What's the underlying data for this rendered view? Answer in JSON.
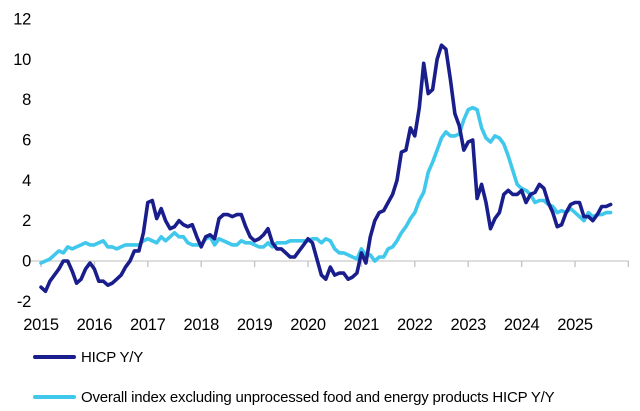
{
  "chart_data": {
    "type": "line",
    "frequency": "monthly",
    "x_range": [
      "2015-01",
      "2025-09"
    ],
    "x_tick_labels": [
      "2015",
      "2016",
      "2017",
      "2018",
      "2019",
      "2020",
      "2021",
      "2022",
      "2023",
      "2024",
      "2025"
    ],
    "y_ticks": [
      12,
      10,
      8,
      6,
      4,
      2,
      0,
      -2
    ],
    "ylim": [
      -2,
      12
    ],
    "grid": "zero-line-only",
    "legend_position": "bottom-left",
    "series": [
      {
        "name": "HICP Y/Y",
        "color": "#1A1E8C",
        "values": [
          -1.3,
          -1.5,
          -1.0,
          -0.7,
          -0.4,
          0,
          0,
          -0.5,
          -1.1,
          -0.9,
          -0.4,
          -0.1,
          -0.4,
          -1.0,
          -1.0,
          -1.2,
          -1.1,
          -0.9,
          -0.7,
          -0.3,
          0,
          0.5,
          0.5,
          1.4,
          2.9,
          3.0,
          2.1,
          2.6,
          2.0,
          1.6,
          1.7,
          2.0,
          1.8,
          1.7,
          1.8,
          1.2,
          0.7,
          1.2,
          1.3,
          1.1,
          2.1,
          2.3,
          2.3,
          2.2,
          2.3,
          2.3,
          1.7,
          1.2,
          1.0,
          1.1,
          1.3,
          1.6,
          0.9,
          0.6,
          0.6,
          0.4,
          0.2,
          0.2,
          0.5,
          0.8,
          1.1,
          0.9,
          0.1,
          -0.7,
          -0.9,
          -0.3,
          -0.7,
          -0.6,
          -0.6,
          -0.9,
          -0.8,
          -0.6,
          0.4,
          -0.1,
          1.2,
          2.0,
          2.4,
          2.5,
          2.9,
          3.3,
          4.0,
          5.4,
          5.5,
          6.6,
          6.2,
          7.6,
          9.8,
          8.3,
          8.5,
          10.0,
          10.7,
          10.5,
          9.0,
          7.3,
          6.7,
          5.5,
          5.9,
          6.0,
          3.1,
          3.8,
          2.9,
          1.6,
          2.1,
          2.4,
          3.3,
          3.5,
          3.3,
          3.3,
          3.5,
          2.9,
          3.3,
          3.4,
          3.8,
          3.6,
          2.9,
          2.4,
          1.7,
          1.8,
          2.4,
          2.8,
          2.9,
          2.9,
          2.2,
          2.2,
          2.0,
          2.3,
          2.7,
          2.7,
          2.8
        ]
      },
      {
        "name": "Overall index excluding unprocessed food and energy products HICP Y/Y",
        "color": "#3FC8EC",
        "values": [
          -0.1,
          0,
          0.1,
          0.3,
          0.5,
          0.4,
          0.7,
          0.6,
          0.7,
          0.8,
          0.9,
          0.8,
          0.8,
          0.9,
          1.0,
          0.7,
          0.7,
          0.6,
          0.7,
          0.8,
          0.8,
          0.8,
          0.8,
          1.0,
          1.1,
          1.0,
          0.9,
          1.2,
          1.0,
          1.2,
          1.4,
          1.2,
          1.2,
          0.9,
          0.8,
          0.8,
          0.8,
          1.1,
          1.2,
          0.8,
          1.1,
          1.0,
          0.9,
          0.8,
          0.8,
          1.0,
          0.9,
          0.9,
          0.8,
          0.7,
          0.7,
          0.9,
          0.7,
          0.9,
          0.9,
          0.9,
          1.0,
          1.0,
          1.0,
          1.0,
          1.0,
          1.1,
          1.1,
          0.9,
          1.1,
          1.0,
          0.6,
          0.4,
          0.4,
          0.3,
          0.2,
          0.1,
          0.6,
          0.3,
          0.3,
          0,
          0.2,
          0.2,
          0.6,
          0.7,
          1.0,
          1.4,
          1.7,
          2.1,
          2.4,
          3.0,
          3.4,
          4.4,
          4.9,
          5.5,
          6.1,
          6.4,
          6.2,
          6.2,
          6.3,
          7.0,
          7.5,
          7.6,
          7.5,
          6.6,
          6.1,
          5.9,
          6.2,
          6.1,
          5.8,
          5.2,
          4.5,
          3.8,
          3.6,
          3.5,
          3.3,
          2.9,
          3.0,
          3.0,
          2.8,
          2.7,
          2.4,
          2.5,
          2.4,
          2.6,
          2.4,
          2.2,
          2.0,
          2.4,
          2.2,
          2.3,
          2.3,
          2.4,
          2.4
        ]
      }
    ]
  },
  "colors": {
    "background": "#FFFFFF",
    "zero_line": "#D9D9D9",
    "tick": "#C6C6C6",
    "axis_text": "#000000"
  }
}
